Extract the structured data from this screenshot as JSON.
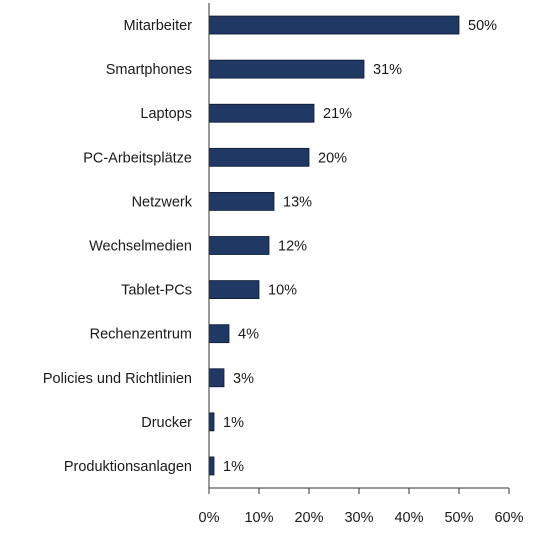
{
  "chart_data": {
    "type": "bar",
    "orientation": "horizontal",
    "categories": [
      "Mitarbeiter",
      "Smartphones",
      "Laptops",
      "PC-Arbeitsplätze",
      "Netzwerk",
      "Wechselmedien",
      "Tablet-PCs",
      "Rechenzentrum",
      "Policies und Richtlinien",
      "Drucker",
      "Produktionsanlagen"
    ],
    "values": [
      50,
      31,
      21,
      20,
      13,
      12,
      10,
      4,
      3,
      1,
      1
    ],
    "data_labels": [
      "50%",
      "31%",
      "21%",
      "20%",
      "13%",
      "12%",
      "10%",
      "4%",
      "3%",
      "1%",
      "1%"
    ],
    "xlim": [
      0,
      60
    ],
    "xticks": [
      0,
      10,
      20,
      30,
      40,
      50,
      60
    ],
    "xtick_labels": [
      "0%",
      "10%",
      "20%",
      "30%",
      "40%",
      "50%",
      "60%"
    ],
    "title": "",
    "xlabel": "",
    "ylabel": "",
    "grid": false,
    "legend": "none",
    "bar_color": "#1f3864"
  }
}
